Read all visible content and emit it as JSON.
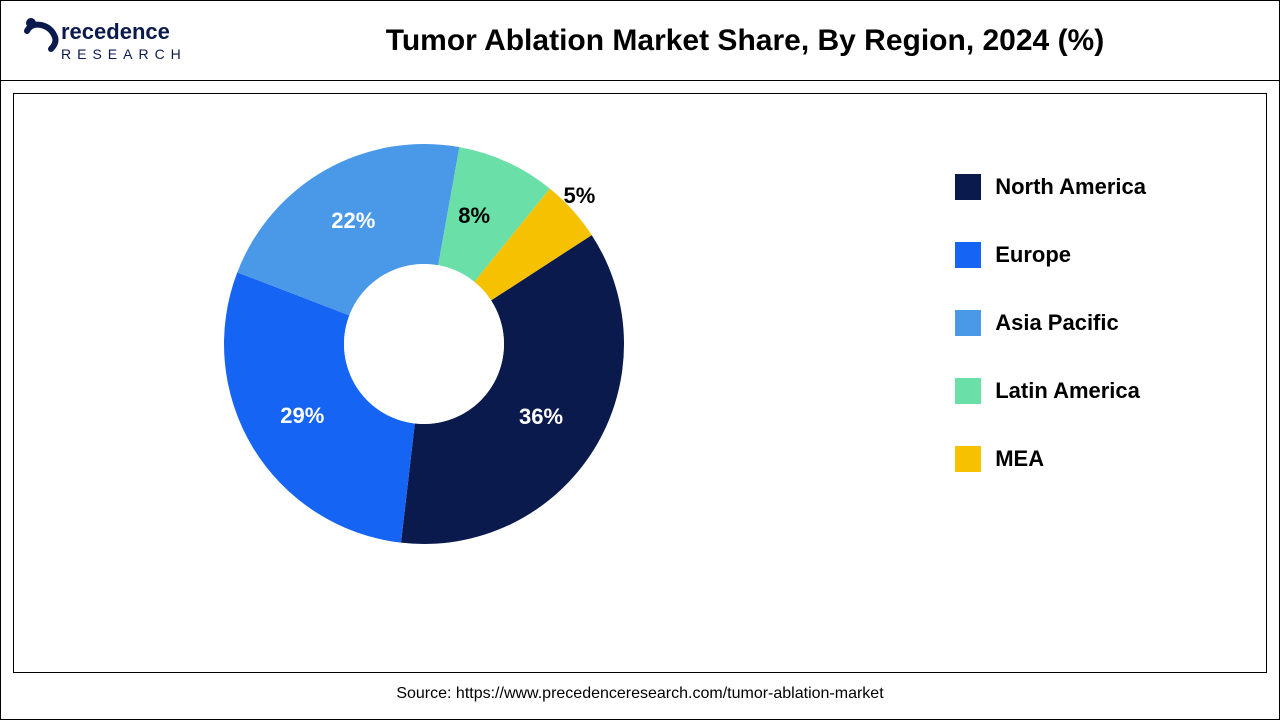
{
  "title": "Tumor Ablation Market Share, By Region, 2024 (%)",
  "brand": {
    "line1": "Precedence",
    "line2": "RESEARCH"
  },
  "source": "Source: https://www.precedenceresearch.com/tumor-ablation-market",
  "chart": {
    "type": "donut",
    "background_color": "#ffffff",
    "inner_radius_ratio": 0.4,
    "label_fontsize_pt": 22,
    "legend_fontsize_pt": 22,
    "title_fontsize_pt": 30,
    "slices": [
      {
        "label": "North America",
        "value": 36,
        "display": "36%",
        "color": "#0a1a4d",
        "label_color": "#ffffff"
      },
      {
        "label": "Europe",
        "value": 29,
        "display": "29%",
        "color": "#1664f4",
        "label_color": "#ffffff"
      },
      {
        "label": "Asia Pacific",
        "value": 22,
        "display": "22%",
        "color": "#4a98e8",
        "label_color": "#ffffff"
      },
      {
        "label": "Latin America",
        "value": 8,
        "display": "8%",
        "color": "#6ae0a8",
        "label_color": "#000000"
      },
      {
        "label": "MEA",
        "value": 5,
        "display": "5%",
        "color": "#f6c200",
        "label_color": "#000000"
      }
    ],
    "start_angle_deg": 57
  }
}
